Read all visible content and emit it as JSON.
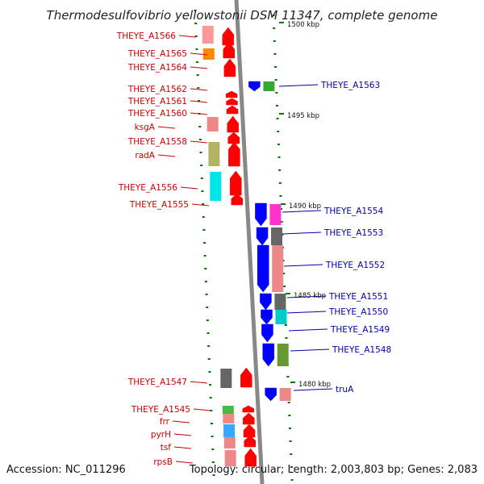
{
  "title": "Thermodesulfovibrio yellowstonii DSM 11347, complete genome",
  "footer": {
    "accession": "Accession: NC_011296",
    "topology": "Topology: circular; Length: 2,003,803 bp; Genes: 2,083"
  },
  "colors": {
    "left_label": "#cc0000",
    "right_label": "#0000aa",
    "strand_forward": "#ff0000",
    "strand_reverse": "#0000ff",
    "backbone": "#888888",
    "tick": "#007700"
  },
  "scale_labels": [
    {
      "text": "1500 kbp"
    },
    {
      "text": "1495 kbp"
    },
    {
      "text": "1490 kbp"
    },
    {
      "text": "1485 kbp"
    },
    {
      "text": "1480 kbp"
    }
  ],
  "left_genes": [
    {
      "name": "THEYE_A1566",
      "cog_color": "#ff9999"
    },
    {
      "name": "THEYE_A1565",
      "cog_color": "#ff8800"
    },
    {
      "name": "THEYE_A1564",
      "cog_color": ""
    },
    {
      "name": "THEYE_A1562",
      "cog_color": ""
    },
    {
      "name": "THEYE_A1561",
      "cog_color": ""
    },
    {
      "name": "THEYE_A1560",
      "cog_color": ""
    },
    {
      "name": "ksgA",
      "cog_color": "#ee8888"
    },
    {
      "name": "THEYE_A1558",
      "cog_color": ""
    },
    {
      "name": "radA",
      "cog_color": "#b3b366"
    },
    {
      "name": "THEYE_A1556",
      "cog_color": "#00e5e5"
    },
    {
      "name": "THEYE_A1555",
      "cog_color": ""
    },
    {
      "name": "THEYE_A1547",
      "cog_color": "#666666"
    },
    {
      "name": "THEYE_A1545",
      "cog_color": "#44bb44"
    },
    {
      "name": "frr",
      "cog_color": "#ee8888"
    },
    {
      "name": "pyrH",
      "cog_color": "#33aaff"
    },
    {
      "name": "tsf",
      "cog_color": "#ee8888"
    },
    {
      "name": "rpsB",
      "cog_color": "#ee8888"
    }
  ],
  "right_genes": [
    {
      "name": "THEYE_A1563",
      "cog_color": "#33aa33"
    },
    {
      "name": "THEYE_A1554",
      "cog_color": "#ff33cc"
    },
    {
      "name": "THEYE_A1553",
      "cog_color": "#666666"
    },
    {
      "name": "THEYE_A1552",
      "cog_color": "#ee8888"
    },
    {
      "name": "THEYE_A1551",
      "cog_color": "#666666"
    },
    {
      "name": "THEYE_A1550",
      "cog_color": "#00cccc"
    },
    {
      "name": "THEYE_A1549",
      "cog_color": ""
    },
    {
      "name": "THEYE_A1548",
      "cog_color": "#669933"
    },
    {
      "name": "truA",
      "cog_color": "#ee8888"
    }
  ]
}
